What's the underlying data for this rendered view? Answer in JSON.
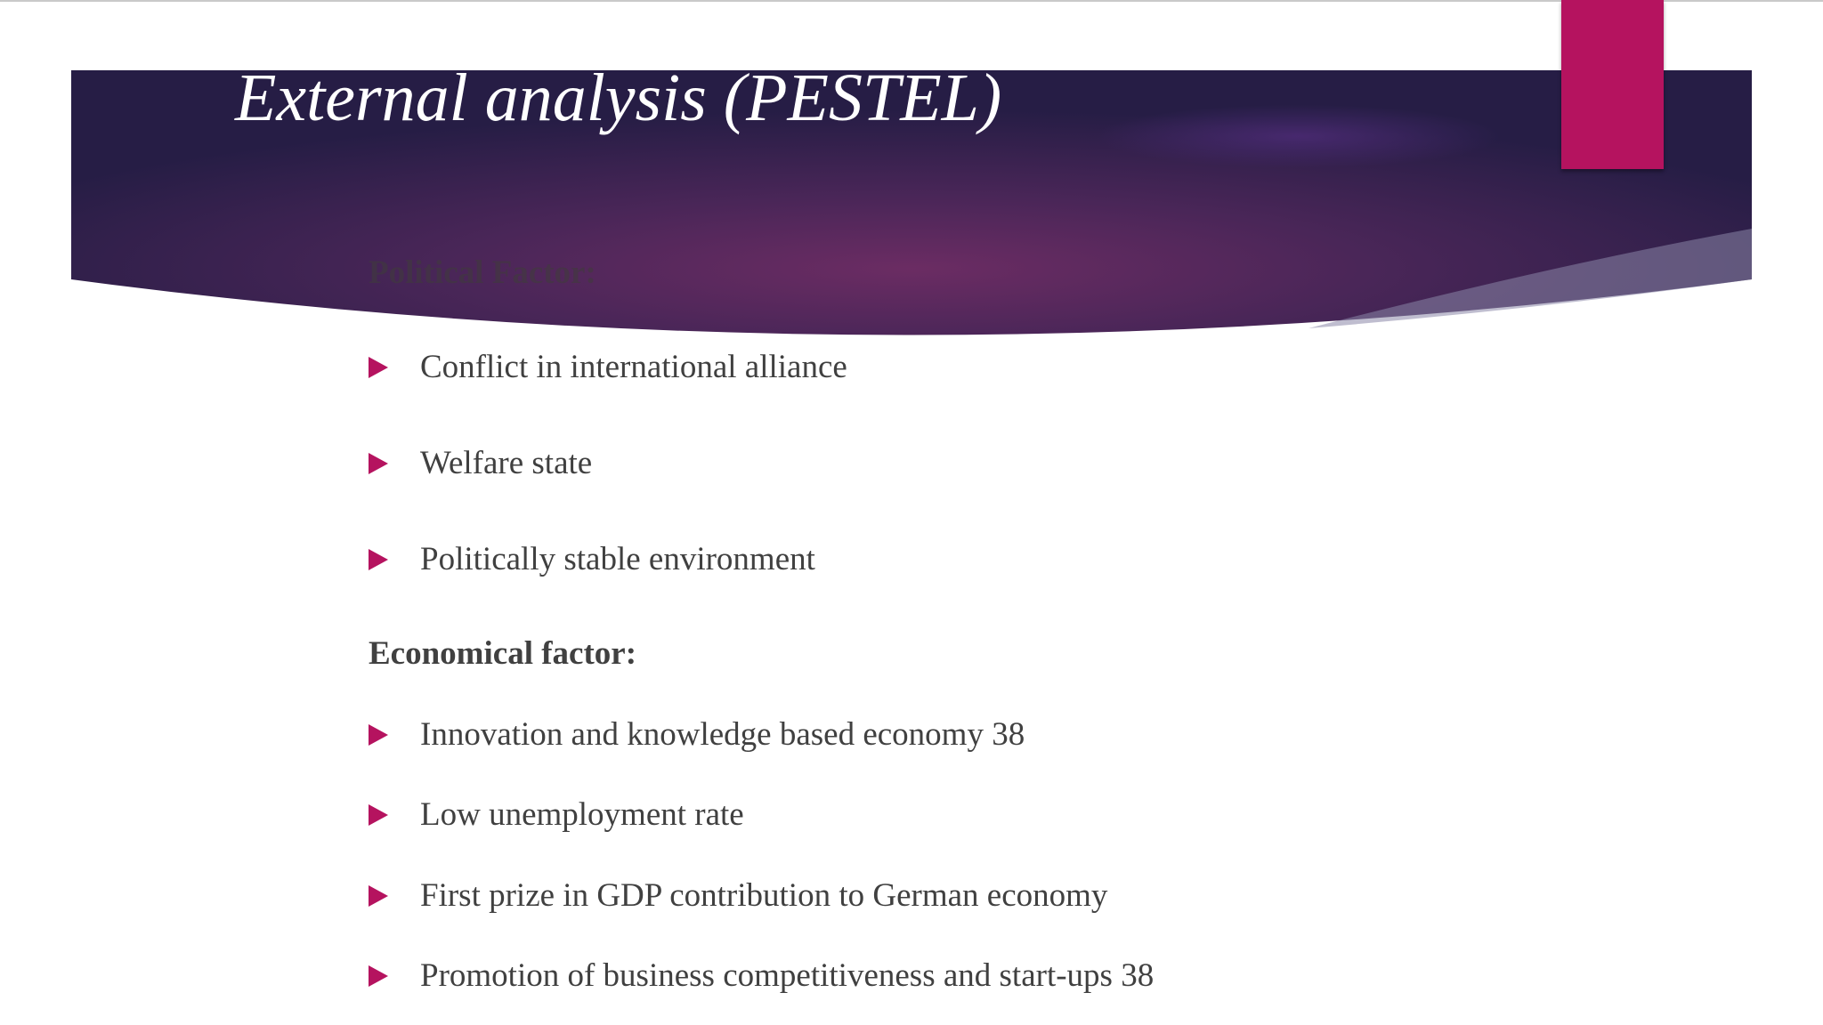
{
  "slide": {
    "title": "External analysis (PESTEL)",
    "colors": {
      "banner_dark": "#261d45",
      "banner_mid": "#6b2c63",
      "accent": "#b5135f",
      "body_text": "#404040"
    },
    "sections": [
      {
        "heading": "Political Factor:",
        "bullets": [
          "Conflict in international alliance",
          "Welfare state",
          "Politically stable environment"
        ]
      },
      {
        "heading": "Economical factor:",
        "bullets": [
          "Innovation and knowledge based economy 38",
          "Low unemployment rate",
          "First prize in GDP contribution to German economy",
          "Promotion of business competitiveness and start-ups 38"
        ]
      }
    ]
  }
}
